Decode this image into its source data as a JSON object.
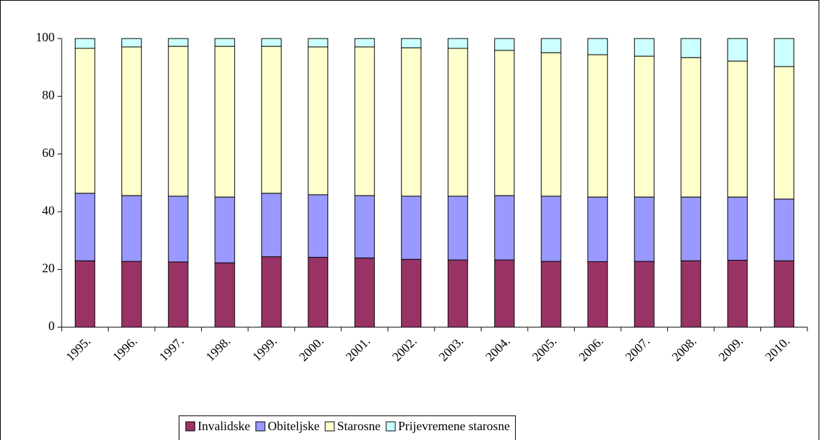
{
  "chart_data": {
    "type": "stacked_bar",
    "categories": [
      "1995.",
      "1996.",
      "1997.",
      "1998.",
      "1999.",
      "2000.",
      "2001.",
      "2002.",
      "2003.",
      "2004.",
      "2005.",
      "2006.",
      "2007.",
      "2008.",
      "2009.",
      "2010."
    ],
    "series": [
      {
        "name": "Invalidske",
        "color": "#993366",
        "values": [
          23,
          22.8,
          22.6,
          22.3,
          24.4,
          24.2,
          24,
          23.5,
          23.3,
          23.3,
          22.8,
          22.7,
          22.8,
          23,
          23.2,
          23
        ]
      },
      {
        "name": "Obiteljske",
        "color": "#9999ff",
        "values": [
          23.4,
          22.8,
          22.8,
          22.8,
          22,
          21.7,
          21.6,
          21.9,
          22.1,
          22.3,
          22.6,
          22.4,
          22.3,
          22.1,
          21.9,
          21.4
        ]
      },
      {
        "name": "Starosne",
        "color": "#ffffcc",
        "values": [
          50.2,
          51.5,
          51.9,
          52.2,
          50.9,
          51.2,
          51.5,
          51.4,
          51.2,
          50.3,
          49.7,
          49.3,
          48.8,
          48.3,
          47.1,
          45.9
        ]
      },
      {
        "name": "Prijevremene starosne",
        "color": "#ccffff",
        "values": [
          3.4,
          2.9,
          2.7,
          2.7,
          2.7,
          2.9,
          2.9,
          3.2,
          3.4,
          4.1,
          4.9,
          5.6,
          6.1,
          6.6,
          7.8,
          9.7
        ]
      }
    ],
    "ylim": [
      0,
      100
    ],
    "yticks": [
      0,
      20,
      40,
      60,
      80,
      100
    ],
    "grid": false,
    "legend": "bottom"
  }
}
